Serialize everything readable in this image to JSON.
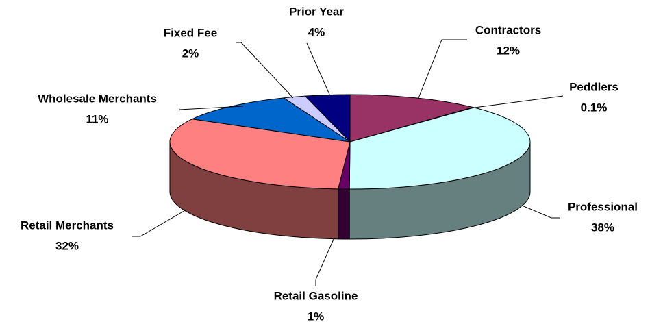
{
  "chart_data": {
    "type": "pie3d",
    "categories": [
      "Contractors",
      "Peddlers",
      "Professional",
      "Retail Gasoline",
      "Retail Merchants",
      "Wholesale Merchants",
      "Fixed Fee",
      "Prior Year"
    ],
    "values": [
      12,
      0.1,
      38,
      1,
      32,
      11,
      2,
      4
    ],
    "value_labels": [
      "12%",
      "0.1%",
      "38%",
      "1%",
      "32%",
      "11%",
      "2%",
      "4%"
    ],
    "colors": [
      "#993366",
      "#FFFFCC",
      "#CCFFFF",
      "#660066",
      "#FF8080",
      "#0066CC",
      "#CCCCFF",
      "#000080"
    ]
  }
}
